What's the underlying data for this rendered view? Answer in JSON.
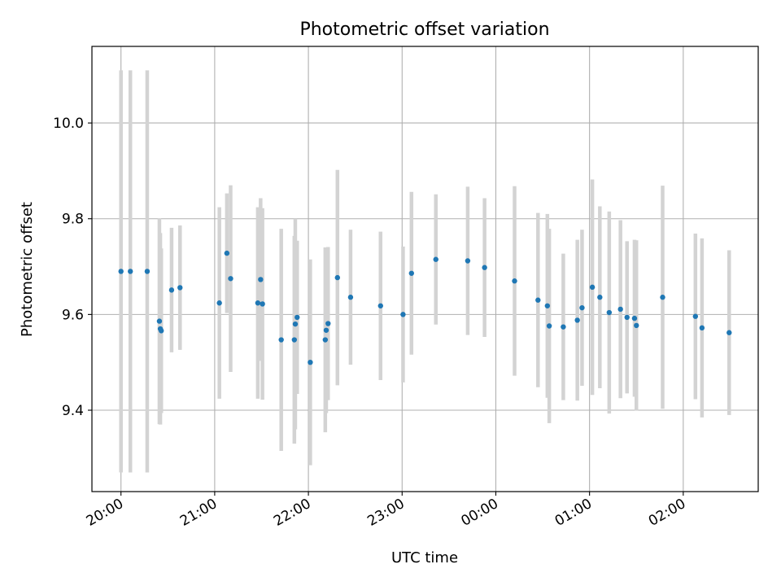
{
  "chart_data": {
    "type": "scatter",
    "title": "Photometric offset variation",
    "xlabel": "UTC time",
    "ylabel": "Photometric offset",
    "x_unit": "hours",
    "xlim": [
      19.69,
      26.8
    ],
    "ylim": [
      9.23,
      10.16
    ],
    "yticks": [
      9.4,
      9.6,
      9.8,
      10.0
    ],
    "ytick_labels": [
      "9.4",
      "9.6",
      "9.8",
      "10.0"
    ],
    "xticks": [
      20,
      21,
      22,
      23,
      24,
      25,
      26
    ],
    "xtick_labels": [
      "20:00",
      "21:00",
      "22:00",
      "23:00",
      "00:00",
      "01:00",
      "02:00"
    ],
    "grid": true,
    "colors": {
      "point": "#1f77b4",
      "errorbar": "#d3d3d3"
    },
    "series": [
      {
        "x": [
          20.0,
          20.1,
          20.28,
          20.41,
          20.42,
          20.43,
          20.54,
          20.63,
          21.05,
          21.13,
          21.17,
          21.46,
          21.49,
          21.51,
          21.71,
          21.85,
          21.86,
          21.88,
          22.02,
          22.18,
          22.19,
          22.21,
          22.31,
          22.45,
          22.77,
          23.01,
          23.1,
          23.36,
          23.7,
          23.88,
          24.2,
          24.45,
          24.55,
          24.57,
          24.72,
          24.87,
          24.92,
          25.03,
          25.11,
          25.21,
          25.33,
          25.4,
          25.48,
          25.5,
          25.78,
          26.13,
          26.2,
          26.49
        ],
        "y": [
          9.69,
          9.69,
          9.69,
          9.586,
          9.57,
          9.566,
          9.651,
          9.656,
          9.624,
          9.728,
          9.675,
          9.624,
          9.673,
          9.622,
          9.547,
          9.547,
          9.58,
          9.594,
          9.5,
          9.547,
          9.567,
          9.581,
          9.677,
          9.636,
          9.618,
          9.6,
          9.686,
          9.715,
          9.712,
          9.698,
          9.67,
          9.63,
          9.618,
          9.576,
          9.574,
          9.588,
          9.614,
          9.657,
          9.636,
          9.604,
          9.611,
          9.594,
          9.592,
          9.577,
          9.636,
          9.596,
          9.572,
          9.562
        ],
        "yerr": [
          0.42,
          0.42,
          0.42,
          0.215,
          0.2,
          0.172,
          0.13,
          0.13,
          0.2,
          0.125,
          0.195,
          0.2,
          0.17,
          0.2,
          0.232,
          0.217,
          0.22,
          0.16,
          0.215,
          0.193,
          0.173,
          0.16,
          0.225,
          0.141,
          0.155,
          0.142,
          0.17,
          0.136,
          0.155,
          0.145,
          0.198,
          0.182,
          0.192,
          0.203,
          0.153,
          0.168,
          0.163,
          0.225,
          0.19,
          0.211,
          0.186,
          0.159,
          0.164,
          0.178,
          0.233,
          0.173,
          0.187,
          0.172
        ]
      }
    ]
  }
}
